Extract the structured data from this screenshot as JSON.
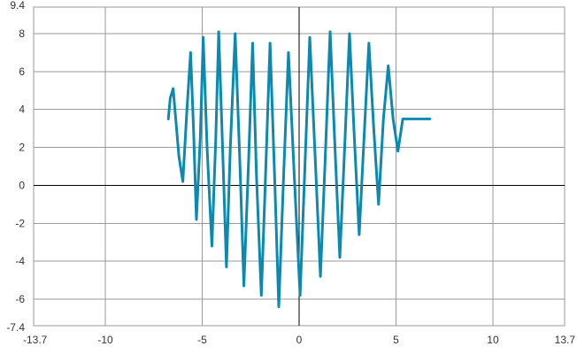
{
  "chart_data": {
    "type": "line",
    "title": "",
    "xlabel": "",
    "ylabel": "",
    "xlim": [
      -13.7,
      13.7
    ],
    "ylim": [
      -7.4,
      9.4
    ],
    "grid": true,
    "x_ticks": [
      -10,
      -5,
      0,
      5,
      10
    ],
    "y_ticks": [
      -6,
      -4,
      -2,
      0,
      2,
      4,
      6,
      8
    ],
    "x_tick_labels": [
      "-13.7",
      "-10",
      "-5",
      "0",
      "5",
      "10",
      "13.7"
    ],
    "y_tick_labels": [
      "9.4",
      "8",
      "6",
      "4",
      "2",
      "0",
      "-2",
      "-4",
      "-6",
      "-7.4"
    ],
    "series": [
      {
        "color": "#0a8ab0",
        "x": [
          -6.75,
          -6.65,
          -6.5,
          -6.2,
          -6.0,
          -5.8,
          -5.6,
          -5.45,
          -5.3,
          -5.1,
          -4.95,
          -4.75,
          -4.5,
          -4.3,
          -4.15,
          -3.95,
          -3.75,
          -3.55,
          -3.3,
          -3.05,
          -2.85,
          -2.6,
          -2.4,
          -2.2,
          -1.95,
          -1.75,
          -1.5,
          -1.25,
          -1.05,
          -0.8,
          -0.55,
          -0.25,
          0.05,
          0.3,
          0.55,
          0.85,
          1.1,
          1.35,
          1.6,
          1.85,
          2.1,
          2.35,
          2.6,
          2.85,
          3.1,
          3.35,
          3.6,
          3.85,
          4.1,
          4.35,
          4.6,
          4.85,
          5.1,
          5.35,
          5.6,
          5.85,
          6.1,
          6.35,
          6.55,
          6.75
        ],
        "y": [
          3.5,
          4.6,
          5.1,
          1.5,
          0.2,
          3.8,
          7.0,
          3.0,
          -1.8,
          2.5,
          7.8,
          2.0,
          -3.2,
          2.5,
          8.1,
          2.0,
          -4.3,
          2.0,
          8.0,
          1.0,
          -5.3,
          1.5,
          7.5,
          0.5,
          -5.8,
          0.0,
          7.5,
          0.0,
          -6.4,
          0.5,
          7.0,
          0.5,
          -5.8,
          1.0,
          7.8,
          1.0,
          -4.8,
          1.5,
          8.1,
          2.0,
          -3.8,
          2.0,
          8.0,
          2.5,
          -2.6,
          2.5,
          7.5,
          3.0,
          -1.0,
          3.5,
          6.3,
          3.5,
          1.8,
          3.5,
          3.5,
          3.5,
          3.5,
          3.5,
          3.5,
          3.5
        ]
      }
    ]
  }
}
